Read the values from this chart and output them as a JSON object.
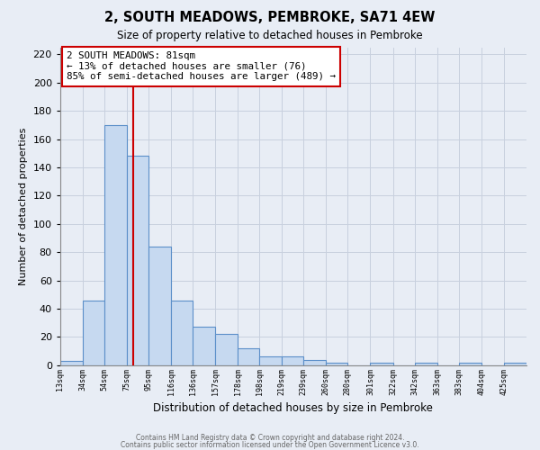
{
  "title": "2, SOUTH MEADOWS, PEMBROKE, SA71 4EW",
  "subtitle": "Size of property relative to detached houses in Pembroke",
  "xlabel": "Distribution of detached houses by size in Pembroke",
  "ylabel": "Number of detached properties",
  "bin_labels": [
    "13sqm",
    "34sqm",
    "54sqm",
    "75sqm",
    "95sqm",
    "116sqm",
    "136sqm",
    "157sqm",
    "178sqm",
    "198sqm",
    "219sqm",
    "239sqm",
    "260sqm",
    "280sqm",
    "301sqm",
    "322sqm",
    "342sqm",
    "363sqm",
    "383sqm",
    "404sqm",
    "425sqm"
  ],
  "bin_left_edges": [
    13,
    34,
    54,
    75,
    95,
    116,
    136,
    157,
    178,
    198,
    219,
    239,
    260,
    280,
    301,
    322,
    342,
    363,
    383,
    404,
    425
  ],
  "bin_width": 21,
  "bar_heights": [
    3,
    46,
    170,
    148,
    84,
    46,
    27,
    22,
    12,
    6,
    6,
    4,
    2,
    0,
    2,
    0,
    2,
    0,
    2,
    0,
    2
  ],
  "bar_color": "#c6d9f0",
  "bar_edge_color": "#5b8fc9",
  "grid_color": "#c8d0de",
  "bg_color": "#e8edf5",
  "vline_x": 81,
  "vline_color": "#cc0000",
  "annotation_box_text": "2 SOUTH MEADOWS: 81sqm\n← 13% of detached houses are smaller (76)\n85% of semi-detached houses are larger (489) →",
  "annotation_box_color": "#cc0000",
  "ylim": [
    0,
    225
  ],
  "yticks": [
    0,
    20,
    40,
    60,
    80,
    100,
    120,
    140,
    160,
    180,
    200,
    220
  ],
  "footer_line1": "Contains HM Land Registry data © Crown copyright and database right 2024.",
  "footer_line2": "Contains public sector information licensed under the Open Government Licence v3.0."
}
